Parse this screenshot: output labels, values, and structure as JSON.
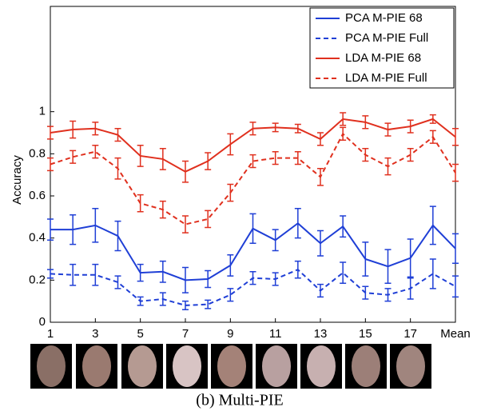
{
  "chart_data": {
    "type": "line",
    "ylabel": "Accuracy",
    "caption": "(b) Multi-PIE",
    "x": [
      1,
      2,
      3,
      4,
      5,
      6,
      7,
      8,
      9,
      10,
      11,
      12,
      13,
      14,
      15,
      16,
      17,
      18,
      19
    ],
    "xlim": [
      1,
      19
    ],
    "xticks": [
      1,
      3,
      5,
      7,
      9,
      11,
      13,
      15,
      17,
      {
        "value": 19,
        "label": "Mean"
      }
    ],
    "ylim": [
      0,
      1.5
    ],
    "yticks": [
      0,
      0.2,
      0.4,
      0.6,
      0.8,
      1
    ],
    "legend": "upper right",
    "series": [
      {
        "name": "PCA M-PIE 68",
        "color": "#1f3fd6",
        "style": "solid",
        "values": [
          0.44,
          0.44,
          0.46,
          0.41,
          0.235,
          0.24,
          0.2,
          0.205,
          0.27,
          0.445,
          0.39,
          0.47,
          0.375,
          0.455,
          0.3,
          0.265,
          0.305,
          0.46,
          0.35
        ],
        "errors": [
          0.05,
          0.07,
          0.08,
          0.07,
          0.04,
          0.05,
          0.06,
          0.04,
          0.05,
          0.07,
          0.05,
          0.07,
          0.06,
          0.05,
          0.08,
          0.08,
          0.09,
          0.09,
          0.07
        ]
      },
      {
        "name": "PCA M-PIE Full",
        "color": "#1f3fd6",
        "style": "dashed",
        "values": [
          0.23,
          0.225,
          0.225,
          0.19,
          0.1,
          0.11,
          0.08,
          0.085,
          0.13,
          0.21,
          0.205,
          0.25,
          0.15,
          0.235,
          0.14,
          0.13,
          0.16,
          0.23,
          0.17
        ],
        "errors": [
          0.02,
          0.05,
          0.05,
          0.03,
          0.02,
          0.03,
          0.02,
          0.02,
          0.03,
          0.03,
          0.03,
          0.04,
          0.03,
          0.05,
          0.03,
          0.03,
          0.05,
          0.07,
          0.05
        ]
      },
      {
        "name": "LDA M-PIE 68",
        "color": "#e0301e",
        "style": "solid",
        "values": [
          0.9,
          0.915,
          0.92,
          0.89,
          0.79,
          0.775,
          0.715,
          0.765,
          0.845,
          0.92,
          0.925,
          0.92,
          0.87,
          0.965,
          0.95,
          0.915,
          0.93,
          0.965,
          0.88
        ],
        "errors": [
          0.03,
          0.04,
          0.03,
          0.03,
          0.05,
          0.05,
          0.05,
          0.04,
          0.05,
          0.03,
          0.02,
          0.02,
          0.03,
          0.03,
          0.03,
          0.03,
          0.03,
          0.02,
          0.04
        ]
      },
      {
        "name": "LDA M-PIE Full",
        "color": "#e0301e",
        "style": "dashed",
        "values": [
          0.75,
          0.785,
          0.81,
          0.73,
          0.565,
          0.535,
          0.465,
          0.49,
          0.615,
          0.765,
          0.78,
          0.78,
          0.69,
          0.895,
          0.795,
          0.74,
          0.795,
          0.88,
          0.71
        ],
        "errors": [
          0.03,
          0.03,
          0.03,
          0.05,
          0.04,
          0.04,
          0.04,
          0.04,
          0.04,
          0.03,
          0.03,
          0.03,
          0.04,
          0.03,
          0.03,
          0.04,
          0.03,
          0.03,
          0.04
        ]
      }
    ]
  }
}
